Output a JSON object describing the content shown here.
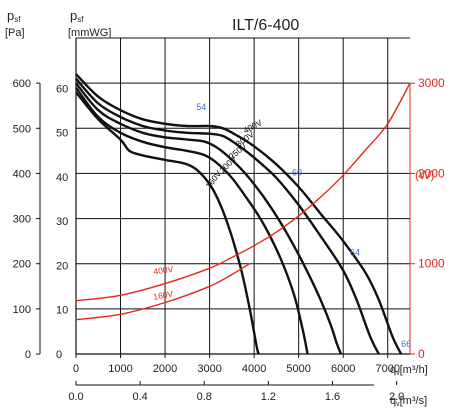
{
  "chart_data": {
    "type": "line",
    "title": "ILT/6-400",
    "y_left_pa": {
      "label_main": "p",
      "label_sub": "sf",
      "unit": "[Pa]",
      "range": [
        0,
        700
      ],
      "ticks": [
        "0",
        "100",
        "200",
        "300",
        "400",
        "500",
        "600"
      ]
    },
    "y_left_mmwg": {
      "label_main": "p",
      "label_sub": "sf",
      "unit": "[mmWG]",
      "range": [
        0,
        71.4
      ],
      "ticks": [
        "0",
        "10",
        "20",
        "30",
        "40",
        "50",
        "60"
      ]
    },
    "x_m3h": {
      "label_main": "q",
      "label_sub": "v",
      "unit": "[m³/h]",
      "range": [
        0,
        7500
      ],
      "ticks": [
        "0",
        "1000",
        "2000",
        "3000",
        "4000",
        "5000",
        "6000",
        "7000"
      ]
    },
    "x_m3s": {
      "label_main": "q",
      "label_sub": "v",
      "unit": "[m³/s]",
      "range": [
        0,
        2.083
      ],
      "ticks": [
        "0.0",
        "0.4",
        "0.8",
        "1.2",
        "1.6",
        "2.0"
      ]
    },
    "y_right_w": {
      "unit": "(W)",
      "range": [
        0,
        3500
      ],
      "ticks": [
        "0",
        "1000",
        "2000",
        "3000"
      ],
      "color": "#e8251d"
    },
    "pressure_series": [
      {
        "name": "400V",
        "x": [
          0,
          500,
          1000,
          1500,
          2000,
          2500,
          3000,
          3300,
          3600,
          4000,
          4500,
          5000,
          5500,
          6000,
          6500,
          6800,
          7100,
          7300
        ],
        "y": [
          620,
          570,
          540,
          520,
          510,
          505,
          505,
          500,
          485,
          460,
          420,
          370,
          310,
          250,
          180,
          120,
          40,
          0
        ]
      },
      {
        "name": "300V",
        "x": [
          0,
          500,
          1000,
          1500,
          2000,
          2500,
          3000,
          3300,
          3600,
          4000,
          4500,
          5000,
          5500,
          6000,
          6300,
          6600,
          6800
        ],
        "y": [
          610,
          555,
          525,
          505,
          495,
          490,
          488,
          483,
          465,
          435,
          390,
          330,
          260,
          185,
          120,
          40,
          0
        ]
      },
      {
        "name": "250V",
        "x": [
          0,
          500,
          1000,
          1500,
          2000,
          2500,
          2900,
          3200,
          3500,
          3800,
          4200,
          4600,
          5000,
          5400,
          5700,
          5850,
          5950
        ],
        "y": [
          600,
          540,
          510,
          490,
          480,
          475,
          470,
          455,
          430,
          400,
          350,
          290,
          220,
          140,
          70,
          25,
          0
        ]
      },
      {
        "name": "200V",
        "x": [
          0,
          500,
          1000,
          1500,
          2000,
          2500,
          2900,
          3200,
          3500,
          3800,
          4200,
          4600,
          4900,
          5100,
          5200
        ],
        "y": [
          590,
          525,
          490,
          470,
          458,
          450,
          440,
          420,
          390,
          350,
          290,
          210,
          130,
          50,
          0
        ]
      },
      {
        "name": "160V",
        "x": [
          0,
          500,
          1000,
          1200,
          1500,
          2000,
          2500,
          2800,
          3100,
          3400,
          3700,
          3900,
          4050,
          4100
        ],
        "y": [
          580,
          520,
          475,
          450,
          440,
          430,
          420,
          400,
          360,
          290,
          190,
          100,
          20,
          0
        ]
      }
    ],
    "power_series": [
      {
        "name": "400V",
        "x": [
          0,
          1000,
          2000,
          3000,
          3500,
          4000,
          4500,
          5000,
          5500,
          6000,
          6500,
          7000,
          7500
        ],
        "y": [
          590,
          650,
          780,
          950,
          1070,
          1200,
          1350,
          1530,
          1740,
          1980,
          2260,
          2550,
          3000
        ]
      },
      {
        "name": "160V",
        "x": [
          0,
          1000,
          2000,
          3000,
          3500,
          3900
        ],
        "y": [
          380,
          440,
          570,
          750,
          880,
          1000
        ]
      }
    ],
    "airflow_labels": [
      {
        "text": "54",
        "x": 2700,
        "y": 540
      },
      {
        "text": "60",
        "x": 4850,
        "y": 395
      },
      {
        "text": "64",
        "x": 6150,
        "y": 218
      },
      {
        "text": "66",
        "x": 7300,
        "y": 15
      }
    ],
    "grid": true
  }
}
